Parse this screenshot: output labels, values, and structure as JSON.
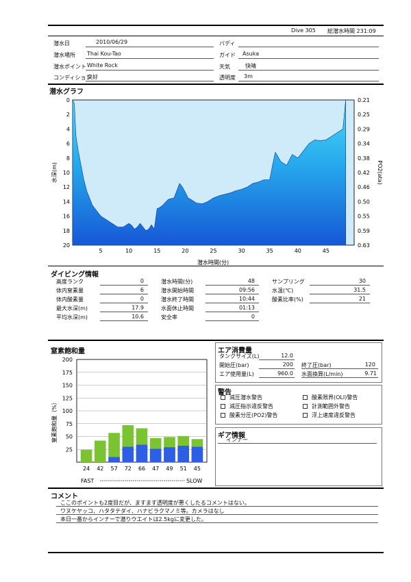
{
  "header": {
    "dive_no": "Dive 305",
    "total_time": "総潜水時間 231:09"
  },
  "info": {
    "date": {
      "label": "潜水日",
      "value": "2010/06/29"
    },
    "location": {
      "label": "潜水場所",
      "value": "Thai Kou-Tao"
    },
    "point": {
      "label": "潜水ポイント",
      "value": "White Rock"
    },
    "condition": {
      "label": "コンディション",
      "value": "良好"
    },
    "buddy": {
      "label": "バディ",
      "value": ""
    },
    "guide": {
      "label": "ガイド",
      "value": "Asuka"
    },
    "weather": {
      "label": "天気",
      "value": "快晴"
    },
    "visibility": {
      "label": "透明度",
      "value": "3m"
    }
  },
  "graph": {
    "title": "潜水グラフ",
    "ylabel": "水深(m)",
    "y2label": "PO2(ata)",
    "xlabel": "潜水時間(分)",
    "depth_ticks": [
      "0",
      "2",
      "4",
      "6",
      "8",
      "10",
      "12",
      "14",
      "16",
      "18",
      "20"
    ],
    "po2_ticks": [
      "0.21",
      "0.25",
      "0.29",
      "0.34",
      "0.38",
      "0.42",
      "0.46",
      "0.50",
      "0.55",
      "0.59",
      "0.63"
    ],
    "time_ticks": [
      "5",
      "10",
      "15",
      "20",
      "25",
      "30",
      "35",
      "40",
      "45"
    ]
  },
  "chart_data": [
    {
      "type": "area",
      "title": "潜水グラフ",
      "xlabel": "潜水時間(分)",
      "ylabel": "水深(m)",
      "y2label": "PO2(ata)",
      "xlim": [
        0,
        50
      ],
      "ylim": [
        20,
        0
      ],
      "x": [
        0,
        0.3,
        0.6,
        1,
        1.5,
        2,
        2.5,
        3,
        3.5,
        4,
        5,
        6,
        7,
        8,
        9,
        10,
        10.5,
        11,
        11.5,
        12,
        12.5,
        13,
        13.5,
        14,
        14.5,
        15,
        15.5,
        16,
        17,
        18,
        18.5,
        19,
        19.5,
        20,
        20.5,
        21,
        22,
        23,
        24,
        25,
        26,
        27,
        28,
        29,
        30,
        31,
        32,
        33,
        34,
        35,
        35.5,
        36,
        37,
        38,
        39,
        40,
        41,
        42,
        43,
        44,
        45,
        46,
        47,
        48,
        48.5
      ],
      "y": [
        0,
        0.5,
        5,
        7,
        9,
        11,
        12.5,
        13.5,
        14.5,
        15,
        16,
        16.5,
        17,
        17.5,
        17.5,
        17,
        17.3,
        17.8,
        17.5,
        17,
        17.5,
        18,
        17.8,
        17.2,
        17.8,
        15,
        14.8,
        14.5,
        13.7,
        13.5,
        12.5,
        11.5,
        12,
        12.7,
        13.5,
        13.7,
        14.2,
        14.3,
        14,
        13.5,
        13.2,
        13,
        12.8,
        12.5,
        12.3,
        12,
        11.5,
        11.3,
        11,
        11,
        9,
        7.2,
        8.5,
        9,
        7.5,
        8,
        7,
        6,
        5.5,
        5.6,
        5.5,
        5,
        4.5,
        4,
        0
      ],
      "po2_ticks": [
        0.21,
        0.25,
        0.29,
        0.34,
        0.38,
        0.42,
        0.46,
        0.5,
        0.55,
        0.59,
        0.63
      ]
    },
    {
      "type": "bar",
      "title": "窒素飽和量",
      "ylabel": "窒素飽和量（%）",
      "ylim": [
        0,
        200
      ],
      "categories": [
        "24",
        "42",
        "57",
        "72",
        "66",
        "47",
        "49",
        "51",
        "45"
      ],
      "series": [
        {
          "color": "#7ac432",
          "values": [
            24,
            42,
            57,
            72,
            66,
            47,
            49,
            51,
            45
          ]
        },
        {
          "color": "#2d5ee6",
          "values": [
            0,
            0,
            10,
            30,
            34,
            26,
            29,
            32,
            30
          ]
        }
      ],
      "xlabel_left": "FAST",
      "xlabel_right": "SLOW"
    }
  ],
  "dive_info": {
    "title": "ダイビング情報",
    "col1": [
      {
        "label": "高度ランク",
        "value": "0"
      },
      {
        "label": "体内窒素量",
        "value": "6"
      },
      {
        "label": "体内酸素量",
        "value": "0"
      },
      {
        "label": "最大水深(m)",
        "value": "17.9"
      },
      {
        "label": "平均水深(m)",
        "value": "10.6"
      }
    ],
    "col2": [
      {
        "label": "潜水時間(分)",
        "value": "48"
      },
      {
        "label": "潜水開始時間",
        "value": "09:56"
      },
      {
        "label": "潜水終了時間",
        "value": "10:44"
      },
      {
        "label": "水面休止時間",
        "value": "01:13"
      },
      {
        "label": "安全率",
        "value": "0"
      }
    ],
    "col3": [
      {
        "label": "サンプリング",
        "value": "30"
      },
      {
        "label": "水温(℃)",
        "value": "31.5"
      },
      {
        "label": "酸素比率(%)",
        "value": "21"
      }
    ]
  },
  "nitrogen": {
    "title": "窒素飽和量",
    "ylabel": "窒素飽和量（%）",
    "y_ticks": [
      "200",
      "175",
      "150",
      "125",
      "100",
      "75",
      "50",
      "25"
    ],
    "fast": "FAST",
    "slow": "SLOW"
  },
  "air": {
    "title": "エア消費量",
    "tank_label": "タンクサイズ(L)",
    "tank_value": "12.0",
    "start_label": "開始圧(bar)",
    "start_value": "200",
    "end_label": "終了圧(bar)",
    "end_value": "120",
    "used_label": "エア使用量(L)",
    "used_value": "960.0",
    "surface_label": "水面換算(L/min)",
    "surface_value": "9.71"
  },
  "warnings": {
    "title": "警告",
    "items": [
      "減圧潜水警告",
      "酸素限界(OLI)警告",
      "減圧指示違反警告",
      "計測範囲外警告",
      "酸素分圧(PO2)警告",
      "浮上速度違反警告"
    ]
  },
  "gear": {
    "title": "ギア情報",
    "inner": "インナー"
  },
  "comment": {
    "title": "コメント",
    "lines": [
      "ここのポイントも2度目だが、ますます透明度が悪くしたるコメントはない。",
      "ワヌケヤッコ、ハタタテダイ、ハナビラクマノミ等。カメラはなし",
      "本日一番からインナーで潜りウエイトは2.5kgに変更した。"
    ]
  }
}
